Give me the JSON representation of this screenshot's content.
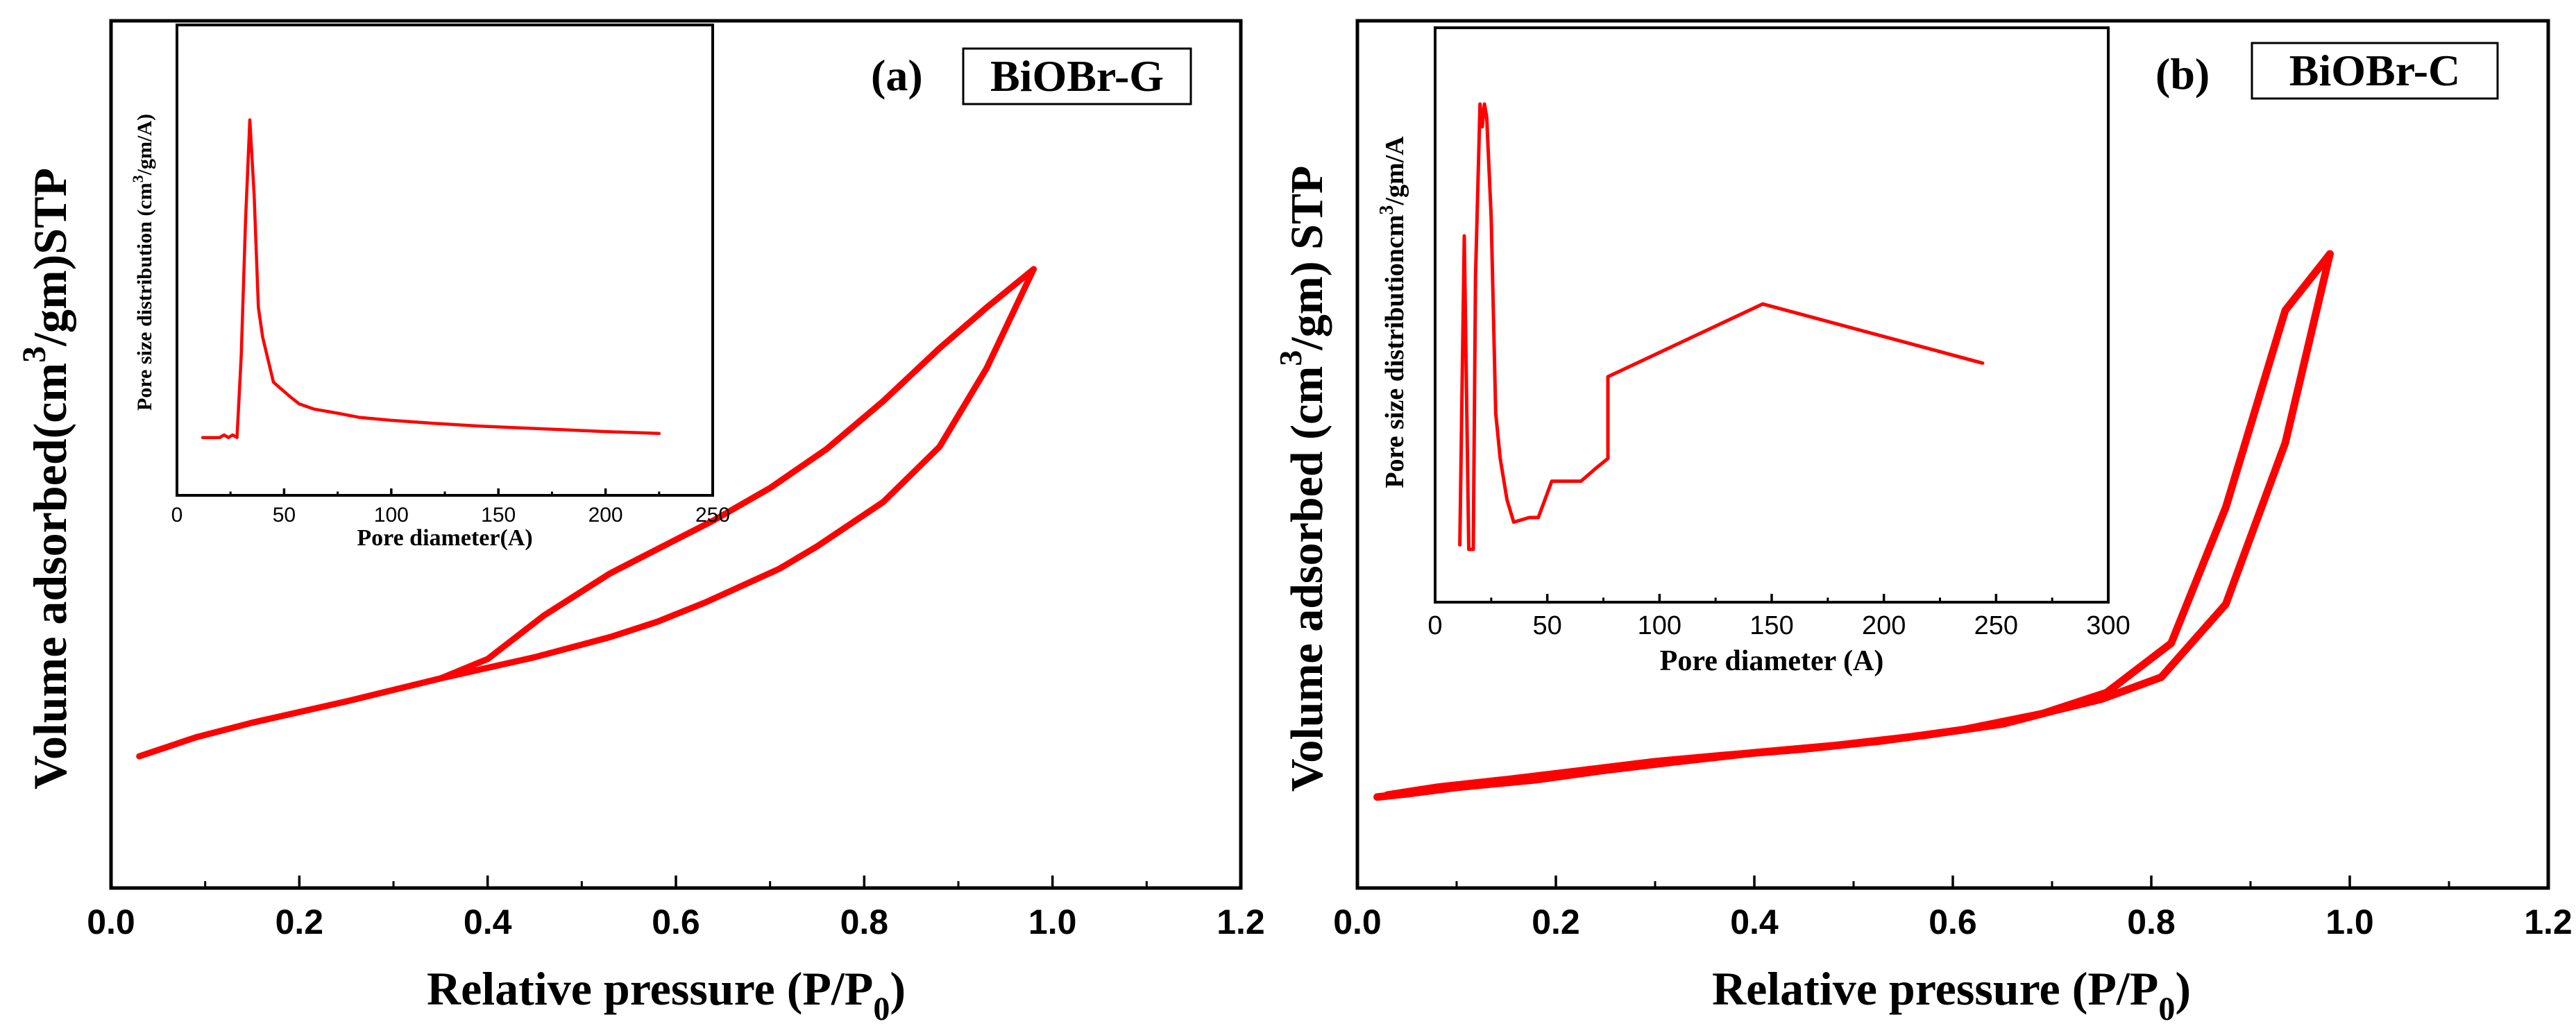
{
  "colors": {
    "series": "#ff0000",
    "axis": "#000000",
    "background": "#ffffff"
  },
  "chart_data": [
    {
      "id": "a",
      "type": "line",
      "panel_label": "(a)",
      "sample_label": "BiOBr-G",
      "xlabel": {
        "main": "Relative pressure (P/P",
        "sub": "0",
        "close": ")"
      },
      "ylabel": {
        "pre": "Volume adsorbed(cm",
        "sup": "3",
        "post": "/gm)STP"
      },
      "xlim": [
        0.0,
        1.2
      ],
      "ylim": [
        0,
        100
      ],
      "xticks": [
        0.0,
        0.2,
        0.4,
        0.6,
        0.8,
        1.0,
        1.2
      ],
      "xtick_labels": [
        "0.0",
        "0.2",
        "0.4",
        "0.6",
        "0.8",
        "1.0",
        "1.2"
      ],
      "series": [
        {
          "name": "adsorption",
          "x": [
            0.03,
            0.09,
            0.15,
            0.25,
            0.35,
            0.45,
            0.53,
            0.58,
            0.63,
            0.71,
            0.75,
            0.82,
            0.88,
            0.93,
            0.98
          ],
          "y": [
            9.4,
            12.6,
            15.1,
            18.7,
            22.6,
            26.2,
            29.6,
            32.2,
            35.4,
            41.2,
            45.0,
            52.5,
            61.9,
            75.2,
            92.0
          ]
        },
        {
          "name": "desorption",
          "x": [
            0.98,
            0.93,
            0.88,
            0.82,
            0.76,
            0.7,
            0.64,
            0.58,
            0.53,
            0.46,
            0.4,
            0.35
          ],
          "y": [
            92.0,
            85.5,
            78.6,
            69.6,
            61.5,
            54.9,
            49.4,
            44.5,
            40.4,
            33.3,
            25.9,
            22.6
          ]
        }
      ],
      "inset": {
        "type": "line",
        "xlabel": "Pore diameter(A)",
        "ylabel": {
          "pre": "Pore size distribution (cm",
          "sup": "3",
          "post": "/gm/A)"
        },
        "xlim": [
          0,
          250
        ],
        "ylim": [
          0,
          100
        ],
        "xticks": [
          0,
          50,
          100,
          150,
          200,
          250
        ],
        "xtick_labels": [
          "0",
          "50",
          "100",
          "150",
          "200",
          "250"
        ],
        "x": [
          12,
          20,
          22,
          24,
          26,
          28,
          30,
          32,
          34,
          36,
          38,
          40,
          45,
          48,
          52,
          57,
          64,
          75,
          85,
          100,
          120,
          140,
          160,
          180,
          200,
          225
        ],
        "y": [
          3.2,
          3.2,
          3.9,
          3.2,
          3.9,
          3.2,
          25.0,
          61.0,
          88.0,
          68.0,
          38.0,
          30.0,
          18.0,
          16.5,
          14.5,
          12.2,
          10.8,
          9.7,
          8.6,
          7.8,
          7.0,
          6.3,
          5.8,
          5.3,
          4.8,
          4.3
        ]
      }
    },
    {
      "id": "b",
      "type": "line",
      "panel_label": "(b)",
      "sample_label": "BiOBr-C",
      "xlabel": {
        "main": "Relative pressure (P/P",
        "sub": "0",
        "close": ")"
      },
      "ylabel": {
        "pre": "Volume adsorbed (cm",
        "sup": "3",
        "post": "/gm) STP"
      },
      "xlim": [
        0.0,
        1.2
      ],
      "ylim": [
        0,
        100
      ],
      "xticks": [
        0.0,
        0.2,
        0.4,
        0.6,
        0.8,
        1.0,
        1.2
      ],
      "xtick_labels": [
        "0.0",
        "0.2",
        "0.4",
        "0.6",
        "0.8",
        "1.0",
        "1.2"
      ],
      "series": [
        {
          "name": "adsorption",
          "x": [
            0.02,
            0.05,
            0.1,
            0.18,
            0.25,
            0.32,
            0.4,
            0.48,
            0.57,
            0.65,
            0.7,
            0.75,
            0.81,
            0.875,
            0.935,
            0.98
          ],
          "y": [
            7.5,
            8.0,
            9.0,
            10.2,
            11.7,
            13.0,
            14.4,
            15.5,
            17.1,
            18.9,
            20.9,
            22.8,
            26.2,
            37.6,
            62.8,
            92.3
          ]
        },
        {
          "name": "desorption",
          "x": [
            0.98,
            0.935,
            0.875,
            0.82,
            0.755,
            0.69,
            0.61,
            0.53,
            0.45,
            0.37,
            0.3,
            0.22,
            0.15,
            0.08,
            0.03
          ],
          "y": [
            92.3,
            83.5,
            52.7,
            31.5,
            23.8,
            20.5,
            18.0,
            16.3,
            15.0,
            14.0,
            13.0,
            11.5,
            10.2,
            9.0,
            7.8
          ]
        }
      ],
      "inset": {
        "type": "line",
        "xlabel": "Pore diameter (A)",
        "ylabel": {
          "pre": "Pore size distributioncm",
          "sup": "3",
          "post": "/gm/A"
        },
        "xlim": [
          0,
          300
        ],
        "ylim": [
          0,
          100
        ],
        "xticks": [
          0,
          50,
          100,
          150,
          200,
          250,
          300
        ],
        "xtick_labels": [
          "0",
          "50",
          "100",
          "150",
          "200",
          "250",
          "300"
        ],
        "x": [
          11,
          13,
          15,
          17,
          18,
          20,
          21,
          22,
          23,
          25,
          27,
          29,
          32,
          35,
          42,
          46,
          52,
          57,
          65,
          72,
          77,
          77,
          146,
          244
        ],
        "y": [
          3,
          71,
          2,
          2,
          62,
          100,
          95,
          100,
          97,
          75,
          32,
          22,
          13,
          8,
          9,
          9,
          17,
          17,
          17,
          20,
          22,
          40,
          56,
          43
        ]
      }
    }
  ]
}
